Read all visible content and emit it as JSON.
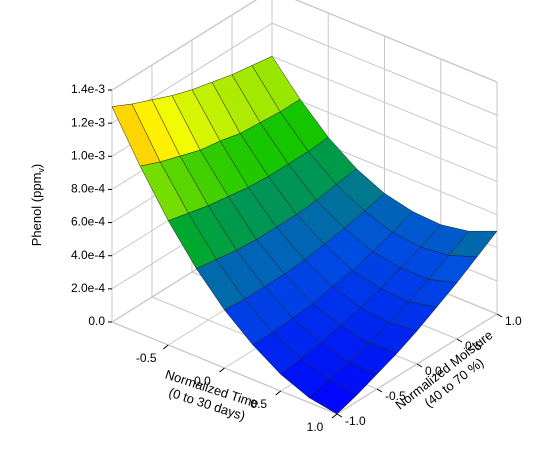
{
  "chart_data": {
    "type": "surface3d",
    "xlabel": [
      "Normalized Time",
      "(0 to 30 days)"
    ],
    "ylabel": [
      "Normalized Moisture",
      "(40 to 70 %)"
    ],
    "zlabel": [
      "Phenol (ppm",
      "v",
      ")"
    ],
    "x": [
      -1,
      -0.75,
      -0.5,
      -0.25,
      0,
      0.25,
      0.5,
      0.75,
      1
    ],
    "y": [
      -1,
      -0.75,
      -0.5,
      -0.25,
      0,
      0.25,
      0.5,
      0.75,
      1
    ],
    "z": [
      [
        0.0013,
        0.00124,
        0.00119,
        0.00114,
        0.0011,
        0.00107,
        0.00104,
        0.00102,
        0.001
      ],
      [
        0.00101,
        0.00096,
        0.00092,
        0.00088,
        0.00086,
        0.00083,
        0.00082,
        0.00081,
        0.00081
      ],
      [
        0.00075,
        0.00072,
        0.00069,
        0.00067,
        0.00065,
        0.00064,
        0.00064,
        0.00064,
        0.00065
      ],
      [
        0.00053,
        0.00051,
        0.00049,
        0.00048,
        0.00048,
        0.00048,
        0.00049,
        0.00051,
        0.00053
      ],
      [
        0.00035,
        0.00034,
        0.00034,
        0.00034,
        0.00035,
        0.00037,
        0.00039,
        0.00042,
        0.00045
      ],
      [
        0.00021,
        0.00021,
        0.00022,
        0.00023,
        0.00026,
        0.00028,
        0.00032,
        0.00036,
        0.00041
      ],
      [
        0.0001,
        0.00012,
        0.00014,
        0.00017,
        0.0002,
        0.00024,
        0.00029,
        0.00034,
        0.0004
      ],
      [
        3e-05,
        6e-05,
        9e-05,
        0.00013,
        0.00018,
        0.00023,
        0.00029,
        0.00036,
        0.00043
      ],
      [
        0,
        4e-05,
        9e-05,
        0.00014,
        0.0002,
        0.00027,
        0.00034,
        0.00042,
        0.0005
      ]
    ],
    "xlim": [
      -1,
      1
    ],
    "ylim": [
      -1,
      1
    ],
    "zlim": [
      0,
      0.0014
    ],
    "xticks": [
      -0.5,
      {
        "value": 0,
        "label": "0.0"
      },
      0.5,
      {
        "value": 1,
        "label": "1.0"
      }
    ],
    "yticks": [
      {
        "value": -1,
        "label": "-1.0"
      },
      -0.5,
      {
        "value": 0,
        "label": "0.0"
      },
      0.5,
      {
        "value": 1,
        "label": "1.0"
      }
    ],
    "zticks": [
      {
        "value": 0,
        "label": "0.0"
      },
      {
        "value": 0.0002,
        "label": "2.0e-4"
      },
      {
        "value": 0.0004,
        "label": "4.0e-4"
      },
      {
        "value": 0.0006,
        "label": "6.0e-4"
      },
      {
        "value": 0.0008,
        "label": "8.0e-4"
      },
      {
        "value": 0.001,
        "label": "1.0e-3"
      },
      {
        "value": 0.0012,
        "label": "1.2e-3"
      },
      {
        "value": 0.0014,
        "label": "1.4e-3"
      }
    ],
    "grid": true,
    "colormap": [
      "#0000ff",
      "#0050e0",
      "#00c000",
      "#ffff00",
      "#ff4000"
    ]
  }
}
